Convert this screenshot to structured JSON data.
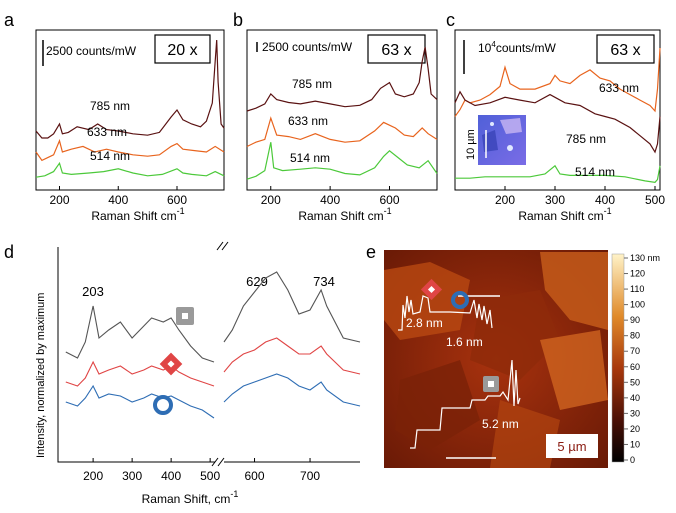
{
  "panel_letters": [
    "a",
    "b",
    "c",
    "d",
    "e"
  ],
  "chart_data": [
    {
      "panel": "a",
      "type": "line",
      "magnification": "20 x",
      "scale_label": "2500 counts/mW",
      "xlabel": "Raman Shift  cm",
      "xlabel_exp": "-1",
      "xlim": [
        120,
        760
      ],
      "xticks": [
        "200",
        "400",
        "600"
      ],
      "series": [
        {
          "name": "785 nm",
          "color": "#5a1212",
          "x": [
            120,
            140,
            160,
            180,
            200,
            210,
            230,
            260,
            300,
            330,
            360,
            400,
            450,
            500,
            540,
            580,
            600,
            620,
            650,
            680,
            700,
            720,
            730,
            735,
            740,
            750,
            760
          ],
          "y": [
            0.35,
            0.3,
            0.3,
            0.33,
            0.4,
            0.33,
            0.34,
            0.38,
            0.36,
            0.4,
            0.36,
            0.35,
            0.33,
            0.32,
            0.34,
            0.45,
            0.5,
            0.43,
            0.4,
            0.38,
            0.42,
            0.55,
            0.85,
            1.0,
            0.7,
            0.4,
            0.37
          ]
        },
        {
          "name": "633 nm",
          "color": "#e8641e",
          "x": [
            120,
            140,
            160,
            180,
            200,
            210,
            240,
            280,
            320,
            360,
            400,
            450,
            500,
            540,
            580,
            600,
            620,
            660,
            700,
            730,
            760
          ],
          "y": [
            0.2,
            0.14,
            0.16,
            0.18,
            0.28,
            0.2,
            0.22,
            0.24,
            0.2,
            0.22,
            0.2,
            0.18,
            0.17,
            0.18,
            0.24,
            0.26,
            0.22,
            0.21,
            0.2,
            0.24,
            0.2
          ]
        },
        {
          "name": "514 nm",
          "color": "#4cc93a",
          "x": [
            120,
            150,
            180,
            200,
            210,
            240,
            300,
            350,
            400,
            450,
            500,
            550,
            600,
            620,
            650,
            700,
            730,
            760
          ],
          "y": [
            0.02,
            0.03,
            0.06,
            0.12,
            0.05,
            0.04,
            0.05,
            0.06,
            0.08,
            0.05,
            0.03,
            0.04,
            0.08,
            0.05,
            0.04,
            0.03,
            0.06,
            0.03
          ]
        }
      ]
    },
    {
      "panel": "b",
      "type": "line",
      "magnification": "63 x",
      "scale_label": "2500 counts/mW",
      "xlabel": "Raman Shift  cm",
      "xlabel_exp": "-1",
      "xlim": [
        120,
        760
      ],
      "xticks": [
        "200",
        "400",
        "600"
      ],
      "series": [
        {
          "name": "785 nm",
          "color": "#5a1212",
          "x": [
            120,
            150,
            180,
            200,
            220,
            260,
            300,
            350,
            400,
            450,
            500,
            540,
            570,
            600,
            620,
            650,
            680,
            700,
            710,
            720,
            730,
            740,
            760
          ],
          "y": [
            0.5,
            0.52,
            0.55,
            0.62,
            0.58,
            0.56,
            0.55,
            0.57,
            0.55,
            0.53,
            0.54,
            0.58,
            0.66,
            0.7,
            0.62,
            0.6,
            0.62,
            0.7,
            0.85,
            0.95,
            0.8,
            0.62,
            0.58
          ]
        },
        {
          "name": "633 nm",
          "color": "#e8641e",
          "x": [
            120,
            150,
            180,
            200,
            220,
            260,
            300,
            350,
            400,
            450,
            500,
            550,
            580,
            600,
            620,
            650,
            680,
            710,
            730,
            760
          ],
          "y": [
            0.25,
            0.28,
            0.3,
            0.45,
            0.33,
            0.32,
            0.3,
            0.34,
            0.3,
            0.28,
            0.29,
            0.36,
            0.42,
            0.4,
            0.38,
            0.33,
            0.32,
            0.38,
            0.34,
            0.3
          ]
        },
        {
          "name": "514 nm",
          "color": "#4cc93a",
          "x": [
            120,
            150,
            180,
            200,
            210,
            240,
            300,
            350,
            400,
            450,
            500,
            550,
            580,
            600,
            630,
            660,
            700,
            730,
            760
          ],
          "y": [
            0.02,
            0.04,
            0.08,
            0.28,
            0.1,
            0.08,
            0.09,
            0.1,
            0.09,
            0.06,
            0.05,
            0.1,
            0.18,
            0.22,
            0.17,
            0.12,
            0.1,
            0.15,
            0.06
          ]
        }
      ]
    },
    {
      "panel": "c",
      "type": "line",
      "magnification": "63 x",
      "scale_label": "10",
      "scale_label_exp": "4",
      "scale_label_unit": "counts/mW",
      "inset_scale": "10 µm",
      "xlabel": "Raman Shift  cm",
      "xlabel_exp": "-1",
      "xlim": [
        100,
        510
      ],
      "xticks": [
        "200",
        "300",
        "400",
        "500"
      ],
      "series": [
        {
          "name": "633 nm",
          "color": "#e8641e",
          "x": [
            100,
            110,
            120,
            130,
            150,
            170,
            190,
            200,
            210,
            230,
            260,
            290,
            300,
            310,
            330,
            350,
            370,
            390,
            410,
            430,
            450,
            470,
            490,
            500,
            505,
            510
          ],
          "y": [
            0.5,
            0.55,
            0.62,
            0.6,
            0.62,
            0.66,
            0.72,
            0.86,
            0.74,
            0.7,
            0.7,
            0.74,
            0.8,
            0.76,
            0.74,
            0.8,
            0.84,
            0.78,
            0.76,
            0.7,
            0.66,
            0.62,
            0.58,
            0.54,
            0.7,
            1.0
          ]
        },
        {
          "name": "785 nm",
          "color": "#5a1212",
          "x": [
            100,
            110,
            120,
            140,
            170,
            200,
            230,
            260,
            290,
            300,
            320,
            350,
            380,
            400,
            420,
            450,
            470,
            490,
            500,
            505,
            510
          ],
          "y": [
            0.6,
            0.68,
            0.62,
            0.58,
            0.6,
            0.64,
            0.62,
            0.6,
            0.66,
            0.64,
            0.6,
            0.58,
            0.52,
            0.5,
            0.48,
            0.42,
            0.36,
            0.3,
            0.24,
            0.3,
            0.5
          ]
        },
        {
          "name": "514 nm",
          "color": "#4cc93a",
          "x": [
            100,
            130,
            160,
            200,
            250,
            280,
            300,
            310,
            330,
            360,
            400,
            440,
            480,
            500,
            505,
            510
          ],
          "y": [
            0.05,
            0.05,
            0.06,
            0.06,
            0.06,
            0.08,
            0.14,
            0.08,
            0.07,
            0.07,
            0.07,
            0.06,
            0.03,
            0.02,
            0.04,
            0.14
          ]
        }
      ]
    },
    {
      "panel": "d",
      "type": "line",
      "ylabel": "Intensity, normalized by maximum",
      "xlabel": "Raman Shift, cm",
      "xlabel_exp": "-1",
      "xlim": [
        110,
        790
      ],
      "axis_break": [
        515,
        545
      ],
      "xticks": [
        "200",
        "300",
        "400",
        "500",
        "600",
        "700"
      ],
      "peak_labels": [
        "203",
        "629",
        "734"
      ],
      "series": [
        {
          "marker": "gray-square",
          "color": "#555555",
          "x": [
            130,
            160,
            180,
            200,
            215,
            240,
            270,
            300,
            330,
            350,
            380,
            400,
            420,
            450,
            480,
            510,
            545,
            560,
            580,
            600,
            620,
            640,
            660,
            680,
            700,
            720,
            730,
            760,
            790
          ],
          "y": [
            0.55,
            0.52,
            0.6,
            0.78,
            0.62,
            0.66,
            0.7,
            0.62,
            0.68,
            0.72,
            0.7,
            0.72,
            0.66,
            0.58,
            0.52,
            0.5,
            0.6,
            0.66,
            0.78,
            0.85,
            0.92,
            0.95,
            0.86,
            0.74,
            0.76,
            0.86,
            0.78,
            0.62,
            0.6
          ]
        },
        {
          "marker": "red-diamond",
          "color": "#e04545",
          "x": [
            130,
            160,
            180,
            200,
            215,
            240,
            270,
            300,
            330,
            350,
            380,
            400,
            420,
            450,
            480,
            510,
            545,
            560,
            580,
            600,
            620,
            640,
            660,
            680,
            700,
            720,
            730,
            760,
            790
          ],
          "y": [
            0.4,
            0.38,
            0.42,
            0.5,
            0.44,
            0.46,
            0.48,
            0.44,
            0.46,
            0.48,
            0.46,
            0.48,
            0.45,
            0.42,
            0.4,
            0.38,
            0.45,
            0.5,
            0.54,
            0.56,
            0.6,
            0.62,
            0.58,
            0.54,
            0.54,
            0.58,
            0.54,
            0.46,
            0.44
          ]
        },
        {
          "marker": "blue-circle",
          "color": "#2e6db4",
          "x": [
            130,
            160,
            180,
            200,
            215,
            240,
            270,
            300,
            330,
            350,
            380,
            400,
            420,
            450,
            480,
            510,
            545,
            560,
            580,
            600,
            620,
            640,
            660,
            680,
            700,
            720,
            730,
            760,
            790
          ],
          "y": [
            0.3,
            0.28,
            0.32,
            0.38,
            0.32,
            0.34,
            0.33,
            0.3,
            0.32,
            0.34,
            0.32,
            0.33,
            0.31,
            0.28,
            0.26,
            0.22,
            0.3,
            0.34,
            0.38,
            0.4,
            0.42,
            0.44,
            0.42,
            0.38,
            0.36,
            0.4,
            0.36,
            0.3,
            0.28
          ]
        }
      ]
    },
    {
      "panel": "e",
      "type": "heatmap",
      "colorbar_ticks": [
        "130 nm",
        "120",
        "110",
        "100",
        "90",
        "80",
        "70",
        "60",
        "50",
        "40",
        "30",
        "20",
        "10",
        "0"
      ],
      "scale_bar": "5 µm",
      "profile_labels": [
        "2.8 nm",
        "1.6 nm",
        "5.2 nm"
      ]
    }
  ]
}
